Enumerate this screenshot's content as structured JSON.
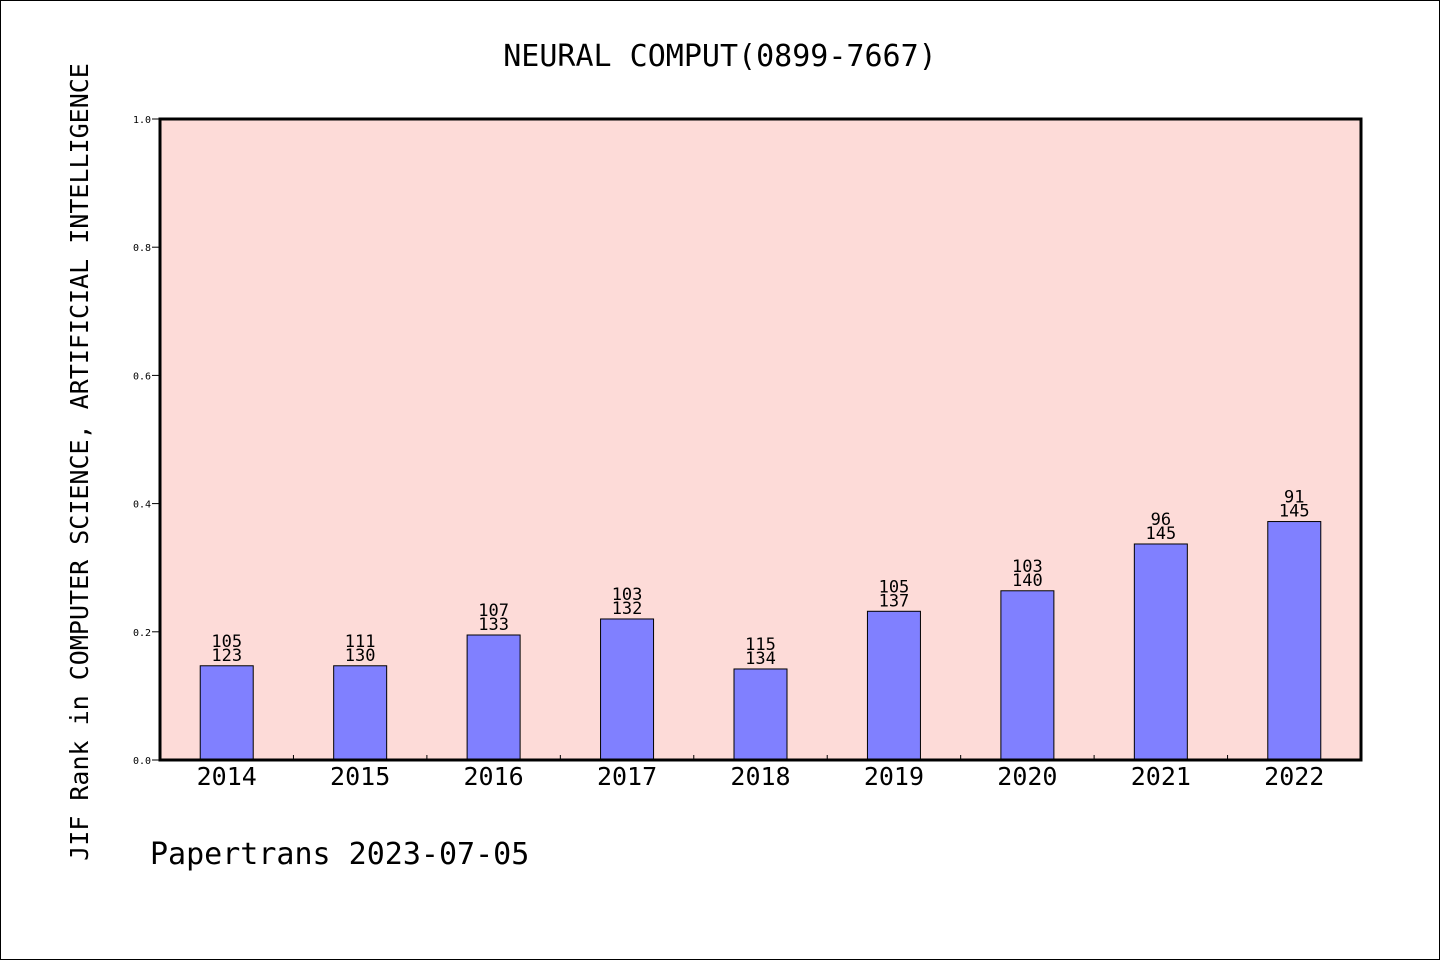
{
  "chart_data": {
    "type": "bar",
    "title": "NEURAL COMPUT(0899-7667)",
    "ylabel": "JIF Rank in COMPUTER SCIENCE, ARTIFICIAL INTELLIGENCE",
    "xlabel": "",
    "footer": "Papertrans 2023-07-05",
    "ylim": [
      0,
      1.0
    ],
    "yticks": [
      "0.0",
      "0.2",
      "0.4",
      "0.6",
      "0.8",
      "1.0"
    ],
    "grid": false,
    "categories": [
      "2014",
      "2015",
      "2016",
      "2017",
      "2018",
      "2019",
      "2020",
      "2021",
      "2022"
    ],
    "series": [
      {
        "values": [
          0.147,
          0.147,
          0.195,
          0.22,
          0.142,
          0.232,
          0.264,
          0.337,
          0.372
        ]
      }
    ],
    "annotations": [
      {
        "rank": "105",
        "total": "123"
      },
      {
        "rank": "111",
        "total": "130"
      },
      {
        "rank": "107",
        "total": "133"
      },
      {
        "rank": "103",
        "total": "132"
      },
      {
        "rank": "115",
        "total": "134"
      },
      {
        "rank": "105",
        "total": "137"
      },
      {
        "rank": "103",
        "total": "140"
      },
      {
        "rank": "96",
        "total": "145"
      },
      {
        "rank": "91",
        "total": "145"
      }
    ],
    "colors": {
      "bar_fill": "#8080ff",
      "plot_background": "#fddbd8",
      "page_background": "#ffffff"
    }
  }
}
